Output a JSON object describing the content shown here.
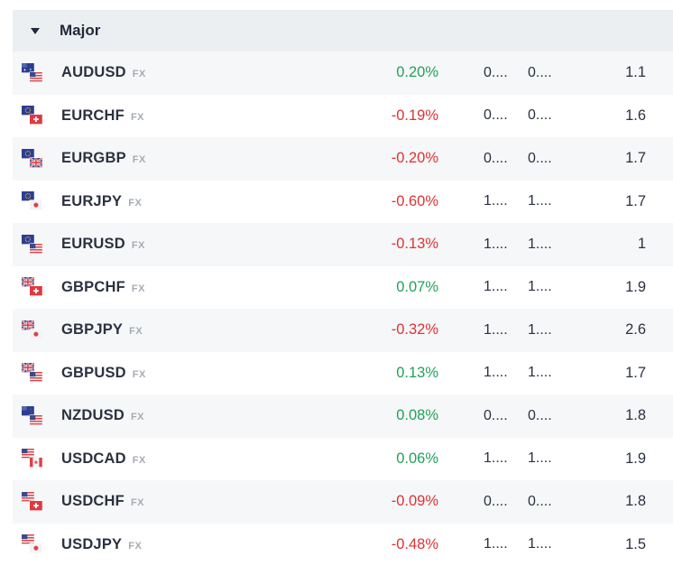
{
  "group": {
    "title": "Major"
  },
  "colors": {
    "positive": "#22a05a",
    "negative": "#dd3333",
    "header_bg": "#eceff2",
    "row_alt": "#f6f7f8"
  },
  "rows": [
    {
      "symbol": "AUDUSD",
      "type": "FX",
      "change": "0.20%",
      "direction": "up",
      "bid": "0....",
      "ask": "0....",
      "spread": "1.1",
      "flags": [
        "au",
        "us"
      ]
    },
    {
      "symbol": "EURCHF",
      "type": "FX",
      "change": "-0.19%",
      "direction": "down",
      "bid": "0....",
      "ask": "0....",
      "spread": "1.6",
      "flags": [
        "eu",
        "ch"
      ]
    },
    {
      "symbol": "EURGBP",
      "type": "FX",
      "change": "-0.20%",
      "direction": "down",
      "bid": "0....",
      "ask": "0....",
      "spread": "1.7",
      "flags": [
        "eu",
        "gb"
      ]
    },
    {
      "symbol": "EURJPY",
      "type": "FX",
      "change": "-0.60%",
      "direction": "down",
      "bid": "1....",
      "ask": "1....",
      "spread": "1.7",
      "flags": [
        "eu",
        "jp"
      ]
    },
    {
      "symbol": "EURUSD",
      "type": "FX",
      "change": "-0.13%",
      "direction": "down",
      "bid": "1....",
      "ask": "1....",
      "spread": "1",
      "flags": [
        "eu",
        "us"
      ]
    },
    {
      "symbol": "GBPCHF",
      "type": "FX",
      "change": "0.07%",
      "direction": "up",
      "bid": "1....",
      "ask": "1....",
      "spread": "1.9",
      "flags": [
        "gb",
        "ch"
      ]
    },
    {
      "symbol": "GBPJPY",
      "type": "FX",
      "change": "-0.32%",
      "direction": "down",
      "bid": "1....",
      "ask": "1....",
      "spread": "2.6",
      "flags": [
        "gb",
        "jp"
      ]
    },
    {
      "symbol": "GBPUSD",
      "type": "FX",
      "change": "0.13%",
      "direction": "up",
      "bid": "1....",
      "ask": "1....",
      "spread": "1.7",
      "flags": [
        "gb",
        "us"
      ]
    },
    {
      "symbol": "NZDUSD",
      "type": "FX",
      "change": "0.08%",
      "direction": "up",
      "bid": "0....",
      "ask": "0....",
      "spread": "1.8",
      "flags": [
        "nz",
        "us"
      ]
    },
    {
      "symbol": "USDCAD",
      "type": "FX",
      "change": "0.06%",
      "direction": "up",
      "bid": "1....",
      "ask": "1....",
      "spread": "1.9",
      "flags": [
        "us",
        "ca"
      ]
    },
    {
      "symbol": "USDCHF",
      "type": "FX",
      "change": "-0.09%",
      "direction": "down",
      "bid": "0....",
      "ask": "0....",
      "spread": "1.8",
      "flags": [
        "us",
        "ch"
      ]
    },
    {
      "symbol": "USDJPY",
      "type": "FX",
      "change": "-0.48%",
      "direction": "down",
      "bid": "1....",
      "ask": "1....",
      "spread": "1.5",
      "flags": [
        "us",
        "jp"
      ]
    }
  ]
}
